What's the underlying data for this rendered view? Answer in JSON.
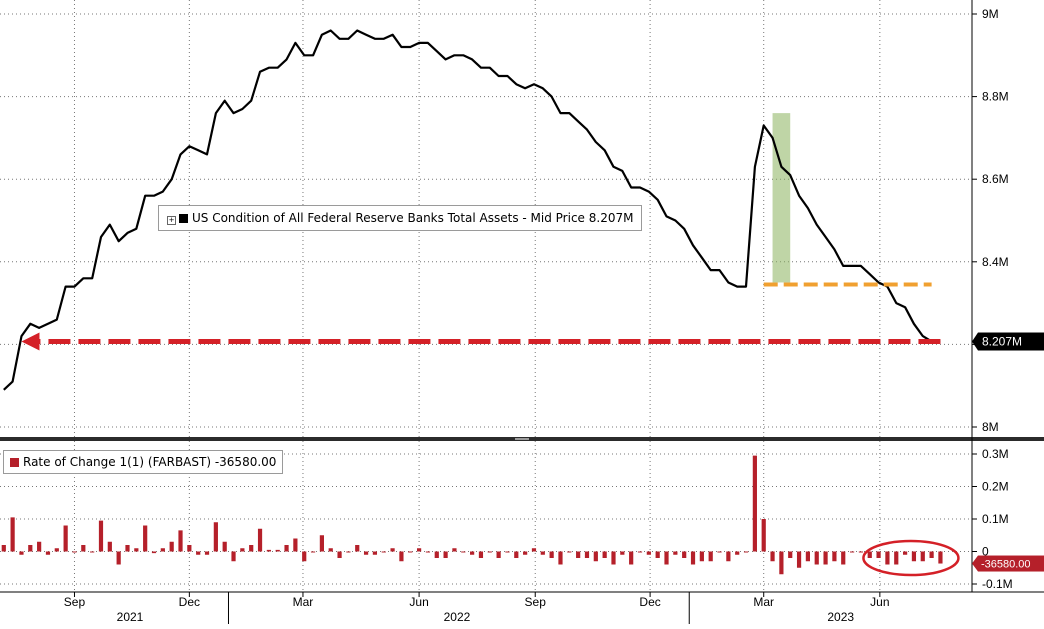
{
  "chart_data": [
    {
      "type": "line",
      "series": [
        {
          "name": "US Condition of All Federal Reserve Banks Total Assets - Mid Price",
          "last_value_label": "8.207M",
          "color": "#000000",
          "x": [
            "2021-07-07",
            "2021-07-14",
            "2021-07-21",
            "2021-07-28",
            "2021-08-04",
            "2021-08-11",
            "2021-08-18",
            "2021-08-25",
            "2021-09-01",
            "2021-09-08",
            "2021-09-15",
            "2021-09-22",
            "2021-09-29",
            "2021-10-06",
            "2021-10-13",
            "2021-10-20",
            "2021-10-27",
            "2021-11-03",
            "2021-11-10",
            "2021-11-17",
            "2021-11-24",
            "2021-12-01",
            "2021-12-08",
            "2021-12-15",
            "2021-12-22",
            "2021-12-29",
            "2022-01-05",
            "2022-01-12",
            "2022-01-19",
            "2022-01-26",
            "2022-02-02",
            "2022-02-09",
            "2022-02-16",
            "2022-02-23",
            "2022-03-02",
            "2022-03-09",
            "2022-03-16",
            "2022-03-23",
            "2022-03-30",
            "2022-04-06",
            "2022-04-13",
            "2022-04-20",
            "2022-04-27",
            "2022-05-04",
            "2022-05-11",
            "2022-05-18",
            "2022-05-25",
            "2022-06-01",
            "2022-06-08",
            "2022-06-15",
            "2022-06-22",
            "2022-06-29",
            "2022-07-06",
            "2022-07-13",
            "2022-07-20",
            "2022-07-27",
            "2022-08-03",
            "2022-08-10",
            "2022-08-17",
            "2022-08-24",
            "2022-08-31",
            "2022-09-07",
            "2022-09-14",
            "2022-09-21",
            "2022-09-28",
            "2022-10-05",
            "2022-10-12",
            "2022-10-19",
            "2022-10-26",
            "2022-11-02",
            "2022-11-09",
            "2022-11-16",
            "2022-11-23",
            "2022-11-30",
            "2022-12-07",
            "2022-12-14",
            "2022-12-21",
            "2022-12-28",
            "2023-01-04",
            "2023-01-11",
            "2023-01-18",
            "2023-01-25",
            "2023-02-01",
            "2023-02-08",
            "2023-02-15",
            "2023-02-22",
            "2023-03-01",
            "2023-03-08",
            "2023-03-15",
            "2023-03-22",
            "2023-03-29",
            "2023-04-05",
            "2023-04-12",
            "2023-04-19",
            "2023-04-26",
            "2023-05-03",
            "2023-05-10",
            "2023-05-17",
            "2023-05-24",
            "2023-05-31",
            "2023-06-07",
            "2023-06-14",
            "2023-06-21",
            "2023-06-28",
            "2023-07-05",
            "2023-07-12",
            "2023-07-19"
          ],
          "values": [
            8.09,
            8.11,
            8.22,
            8.25,
            8.24,
            8.25,
            8.26,
            8.34,
            8.34,
            8.36,
            8.36,
            8.46,
            8.49,
            8.45,
            8.47,
            8.48,
            8.56,
            8.56,
            8.57,
            8.6,
            8.66,
            8.68,
            8.67,
            8.66,
            8.76,
            8.79,
            8.76,
            8.77,
            8.79,
            8.86,
            8.87,
            8.87,
            8.89,
            8.93,
            8.9,
            8.9,
            8.95,
            8.96,
            8.94,
            8.94,
            8.96,
            8.95,
            8.94,
            8.94,
            8.95,
            8.92,
            8.92,
            8.93,
            8.93,
            8.91,
            8.89,
            8.9,
            8.9,
            8.89,
            8.87,
            8.87,
            8.85,
            8.85,
            8.83,
            8.82,
            8.83,
            8.82,
            8.8,
            8.76,
            8.76,
            8.74,
            8.72,
            8.69,
            8.67,
            8.63,
            8.62,
            8.58,
            8.58,
            8.57,
            8.55,
            8.51,
            8.5,
            8.48,
            8.44,
            8.41,
            8.38,
            8.38,
            8.35,
            8.34,
            8.34,
            8.63,
            8.73,
            8.7,
            8.63,
            8.61,
            8.56,
            8.53,
            8.49,
            8.46,
            8.43,
            8.39,
            8.39,
            8.39,
            8.37,
            8.35,
            8.34,
            8.3,
            8.29,
            8.25,
            8.22,
            8.207,
            8.207
          ]
        }
      ],
      "ylim": [
        8.0,
        9.0
      ],
      "y_ticks": [
        "8M",
        "8.2M",
        "8.4M",
        "8.6M",
        "8.8M",
        "9M"
      ],
      "y_tick_values": [
        8.0,
        8.2,
        8.4,
        8.6,
        8.8,
        9.0
      ],
      "grid": true,
      "legend": "center-left",
      "annotations": [
        {
          "type": "highlight-band",
          "x": [
            "2023-03-08",
            "2023-03-22"
          ],
          "color": "#8bb35c"
        },
        {
          "type": "dashed-line",
          "y": 8.345,
          "x": [
            "2023-03-01",
            "2023-07-12"
          ],
          "color": "#f0a030"
        },
        {
          "type": "dashed-arrow",
          "y": 8.207,
          "x": [
            "2023-07-19",
            "2021-07-21"
          ],
          "color": "#d42027"
        }
      ],
      "last_price_color": "#000000"
    },
    {
      "type": "bar",
      "series": [
        {
          "name": "Rate of Change 1(1) (FARBAST)",
          "last_value_label": "-36580.00",
          "color": "#b5202a"
        }
      ],
      "x": [
        "2021-07-07",
        "2021-07-14",
        "2021-07-21",
        "2021-07-28",
        "2021-08-04",
        "2021-08-11",
        "2021-08-18",
        "2021-08-25",
        "2021-09-01",
        "2021-09-08",
        "2021-09-15",
        "2021-09-22",
        "2021-09-29",
        "2021-10-06",
        "2021-10-13",
        "2021-10-20",
        "2021-10-27",
        "2021-11-03",
        "2021-11-10",
        "2021-11-17",
        "2021-11-24",
        "2021-12-01",
        "2021-12-08",
        "2021-12-15",
        "2021-12-22",
        "2021-12-29",
        "2022-01-05",
        "2022-01-12",
        "2022-01-19",
        "2022-01-26",
        "2022-02-02",
        "2022-02-09",
        "2022-02-16",
        "2022-02-23",
        "2022-03-02",
        "2022-03-09",
        "2022-03-16",
        "2022-03-23",
        "2022-03-30",
        "2022-04-06",
        "2022-04-13",
        "2022-04-20",
        "2022-04-27",
        "2022-05-04",
        "2022-05-11",
        "2022-05-18",
        "2022-05-25",
        "2022-06-01",
        "2022-06-08",
        "2022-06-15",
        "2022-06-22",
        "2022-06-29",
        "2022-07-06",
        "2022-07-13",
        "2022-07-20",
        "2022-07-27",
        "2022-08-03",
        "2022-08-10",
        "2022-08-17",
        "2022-08-24",
        "2022-08-31",
        "2022-09-07",
        "2022-09-14",
        "2022-09-21",
        "2022-09-28",
        "2022-10-05",
        "2022-10-12",
        "2022-10-19",
        "2022-10-26",
        "2022-11-02",
        "2022-11-09",
        "2022-11-16",
        "2022-11-23",
        "2022-11-30",
        "2022-12-07",
        "2022-12-14",
        "2022-12-21",
        "2022-12-28",
        "2023-01-04",
        "2023-01-11",
        "2023-01-18",
        "2023-01-25",
        "2023-02-01",
        "2023-02-08",
        "2023-02-15",
        "2023-02-22",
        "2023-03-01",
        "2023-03-08",
        "2023-03-15",
        "2023-03-22",
        "2023-03-29",
        "2023-04-05",
        "2023-04-12",
        "2023-04-19",
        "2023-04-26",
        "2023-05-03",
        "2023-05-10",
        "2023-05-17",
        "2023-05-24",
        "2023-05-31",
        "2023-06-07",
        "2023-06-14",
        "2023-06-21",
        "2023-06-28",
        "2023-07-05",
        "2023-07-12",
        "2023-07-19"
      ],
      "values": [
        0.02,
        0.105,
        -0.01,
        0.02,
        0.03,
        -0.01,
        0.01,
        0.08,
        0.0,
        0.02,
        0.0,
        0.095,
        0.03,
        -0.04,
        0.02,
        0.01,
        0.08,
        -0.005,
        0.01,
        0.03,
        0.065,
        0.02,
        -0.01,
        -0.01,
        0.09,
        0.03,
        -0.03,
        0.01,
        0.02,
        0.07,
        0.005,
        0.005,
        0.02,
        0.04,
        -0.03,
        0.0,
        0.05,
        0.01,
        -0.02,
        0.0,
        0.02,
        -0.01,
        -0.01,
        0.0,
        0.01,
        -0.03,
        0.0,
        0.01,
        0.0,
        -0.02,
        -0.02,
        0.01,
        0.0,
        -0.01,
        -0.02,
        0.0,
        -0.02,
        0.0,
        -0.02,
        -0.01,
        0.01,
        -0.01,
        -0.02,
        -0.04,
        0.0,
        -0.02,
        -0.02,
        -0.03,
        -0.02,
        -0.04,
        -0.01,
        -0.04,
        0.0,
        -0.01,
        -0.02,
        -0.04,
        -0.01,
        -0.02,
        -0.04,
        -0.03,
        -0.03,
        0.0,
        -0.03,
        -0.01,
        0.0,
        0.295,
        0.1,
        -0.03,
        -0.07,
        -0.02,
        -0.05,
        -0.03,
        -0.04,
        -0.04,
        -0.03,
        -0.04,
        0.0,
        0.0,
        -0.02,
        -0.02,
        -0.04,
        -0.04,
        -0.01,
        -0.03,
        -0.03,
        -0.02,
        -0.037
      ],
      "ylim": [
        -0.1,
        0.3
      ],
      "y_ticks": [
        "-0.1M",
        "0",
        "0.1M",
        "0.2M",
        "0.3M"
      ],
      "y_tick_values": [
        -0.1,
        0,
        0.1,
        0.2,
        0.3
      ],
      "grid": true,
      "legend": "top-left",
      "annotations": [
        {
          "type": "ellipse",
          "x": [
            "2023-06-07",
            "2023-07-19"
          ],
          "color": "#d42027"
        }
      ]
    }
  ],
  "x_axis": {
    "month_ticks": [
      {
        "label": "Sep",
        "date": "2021-09-01"
      },
      {
        "label": "Dec",
        "date": "2021-12-01"
      },
      {
        "label": "Mar",
        "date": "2022-03-01"
      },
      {
        "label": "Jun",
        "date": "2022-06-01"
      },
      {
        "label": "Sep",
        "date": "2022-09-01"
      },
      {
        "label": "Dec",
        "date": "2022-12-01"
      },
      {
        "label": "Mar",
        "date": "2023-03-01"
      },
      {
        "label": "Jun",
        "date": "2023-06-01"
      }
    ],
    "year_labels": [
      {
        "label": "2021",
        "date": "2021-10-15"
      },
      {
        "label": "2022",
        "date": "2022-07-01"
      },
      {
        "label": "2023",
        "date": "2023-05-01"
      }
    ],
    "year_dividers": [
      "2022-01-01",
      "2023-01-01"
    ]
  },
  "legend_top": {
    "text": "US Condition of All Federal Reserve Banks Total Assets - Mid Price 8.207M",
    "swatch_color": "#000000"
  },
  "legend_bottom": {
    "text": "Rate of Change 1(1) (FARBAST) -36580.00",
    "swatch_color": "#b5202a"
  }
}
